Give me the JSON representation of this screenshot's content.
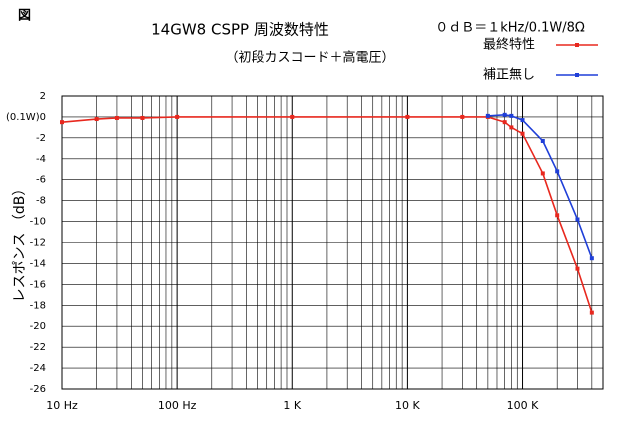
{
  "chart_data": {
    "type": "line",
    "figure_label": "図",
    "title": "14GW8 CSPP 周波数特性",
    "subtitle": "（初段カスコード＋高電圧）",
    "reference": "０ｄＢ＝１kHz/0.1W/8Ω",
    "annotation": "(0.1W)",
    "y_label": "レスポンス （dB）",
    "xscale": "log",
    "xlim": [
      10,
      500000
    ],
    "xticks": [
      {
        "value": 10,
        "label": "10 Hz"
      },
      {
        "value": 100,
        "label": "100 Hz"
      },
      {
        "value": 1000,
        "label": "1 K"
      },
      {
        "value": 10000,
        "label": "10 K"
      },
      {
        "value": 100000,
        "label": "100 K"
      }
    ],
    "ylim": [
      -26,
      2
    ],
    "yticks": [
      2,
      0,
      -2,
      -4,
      -6,
      -8,
      -10,
      -12,
      -14,
      -16,
      -18,
      -20,
      -22,
      -24,
      -26
    ],
    "grid": true,
    "legend": "top-right",
    "series": [
      {
        "name": "最終特性",
        "color": "#e8281e",
        "x": [
          10,
          20,
          30,
          50,
          100,
          1000,
          10000,
          30000,
          50000,
          70000,
          80000,
          100000,
          150000,
          200000,
          300000,
          400000
        ],
        "values": [
          -0.5,
          -0.2,
          -0.1,
          -0.1,
          0,
          0,
          0,
          0,
          0,
          -0.5,
          -1.0,
          -1.6,
          -5.4,
          -9.4,
          -14.5,
          -18.7
        ]
      },
      {
        "name": "補正無し",
        "color": "#1f3fd8",
        "x": [
          50000,
          70000,
          80000,
          100000,
          150000,
          200000,
          300000,
          400000
        ],
        "values": [
          0.1,
          0.2,
          0.1,
          -0.3,
          -2.3,
          -5.2,
          -9.8,
          -13.5
        ]
      }
    ]
  }
}
